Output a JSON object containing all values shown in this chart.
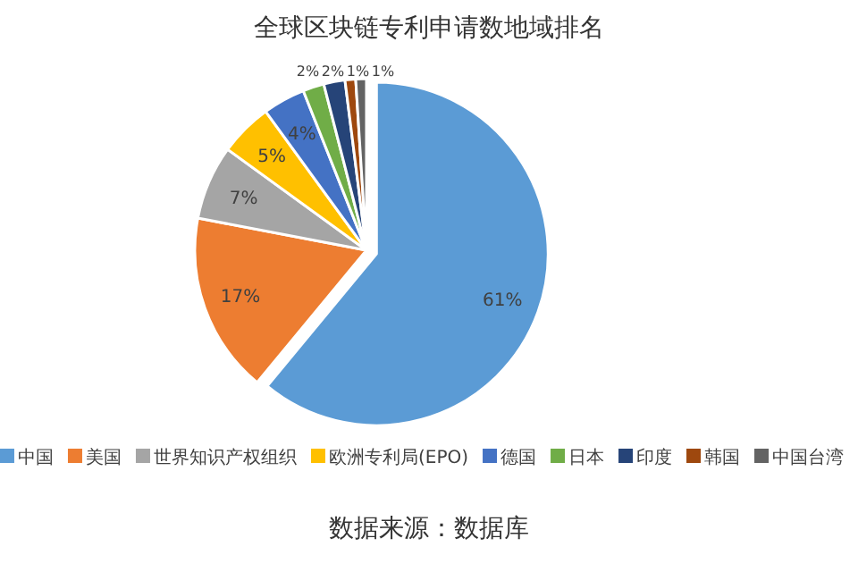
{
  "chart_data": {
    "type": "pie",
    "title": "全球区块链专利申请数地域排名",
    "categories": [
      "中国",
      "美国",
      "世界知识产权组织",
      "欧洲专利局(EPO)",
      "德国",
      "日本",
      "印度",
      "韩国",
      "中国台湾"
    ],
    "values": [
      61,
      17,
      7,
      5,
      4,
      2,
      2,
      1,
      1
    ],
    "value_labels": [
      "61%",
      "17%",
      "7%",
      "5%",
      "4%",
      "2%",
      "2%",
      "1%",
      "1%"
    ],
    "colors": [
      "#5b9bd5",
      "#ed7d31",
      "#a5a5a5",
      "#ffc000",
      "#4472c4",
      "#70ad47",
      "#264478",
      "#9e480e",
      "#636363"
    ],
    "legend": "bottom",
    "annotations": [
      "数据来源：数据库"
    ]
  }
}
